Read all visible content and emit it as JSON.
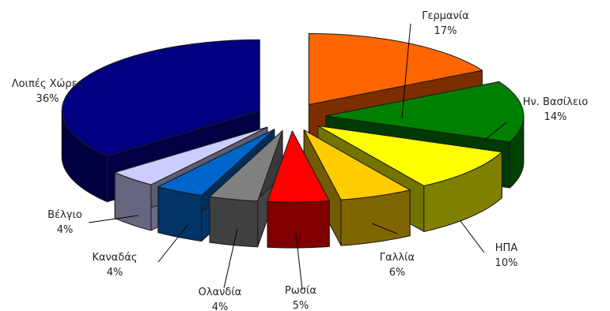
{
  "chart_data": {
    "type": "pie",
    "style": "3d-exploded",
    "slices": [
      {
        "label": "Γερμανία",
        "value": 17,
        "pct_label": "17%",
        "color": "#ff6600",
        "side_color": "#8a3300"
      },
      {
        "label": "Ην. Βασίλειο",
        "value": 14,
        "pct_label": "14%",
        "color": "#008000",
        "side_color": "#004000"
      },
      {
        "label": "ΗΠΑ",
        "value": 10,
        "pct_label": "10%",
        "color": "#ffff00",
        "side_color": "#808000"
      },
      {
        "label": "Γαλλία",
        "value": 6,
        "pct_label": "6%",
        "color": "#ffcc00",
        "side_color": "#806600"
      },
      {
        "label": "Ρωσία",
        "value": 5,
        "pct_label": "5%",
        "color": "#ff0000",
        "side_color": "#800000"
      },
      {
        "label": "Ολανδία",
        "value": 4,
        "pct_label": "4%",
        "color": "#808080",
        "side_color": "#404040"
      },
      {
        "label": "Καναδάς",
        "value": 4,
        "pct_label": "4%",
        "color": "#0066cc",
        "side_color": "#003366"
      },
      {
        "label": "Βέλγιο",
        "value": 4,
        "pct_label": "4%",
        "color": "#ccccff",
        "side_color": "#666680"
      },
      {
        "label": "Λοιπές Χώρες",
        "value": 36,
        "pct_label": "36%",
        "color": "#000080",
        "side_color": "#000040"
      }
    ],
    "legend": "none"
  }
}
